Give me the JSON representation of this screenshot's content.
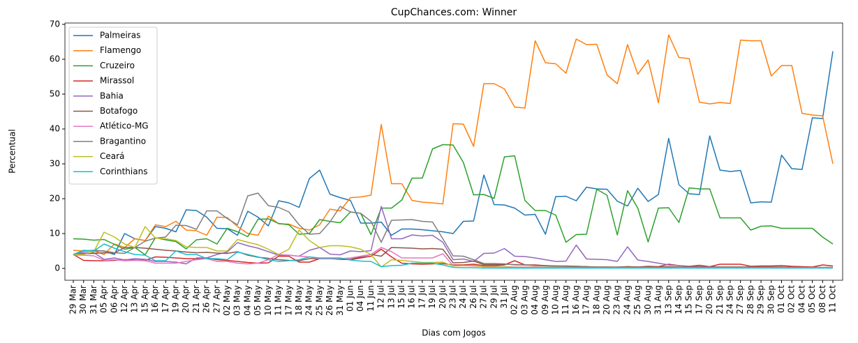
{
  "chart_data": {
    "type": "line",
    "title": "CupChances.com: Winner",
    "x_label": "Dias com Jogos",
    "y_label": "Percentual",
    "categories": [
      "29 Mar",
      "30 Mar",
      "31 Mar",
      "05 Apr",
      "06 Apr",
      "12 Apr",
      "13 Apr",
      "15 Apr",
      "16 Apr",
      "17 Apr",
      "19 Apr",
      "20 Apr",
      "21 Apr",
      "26 Apr",
      "27 Apr",
      "02 May",
      "03 May",
      "04 May",
      "05 May",
      "10 May",
      "11 May",
      "17 May",
      "18 May",
      "24 May",
      "25 May",
      "26 May",
      "31 May",
      "01 Jun",
      "04 Jun",
      "11 Jun",
      "12 Jul",
      "13 Jul",
      "15 Jul",
      "16 Jul",
      "17 Jul",
      "19 Jul",
      "20 Jul",
      "23 Jul",
      "24 Jul",
      "26 Jul",
      "27 Jul",
      "29 Jul",
      "31 Jul",
      "02 Aug",
      "03 Aug",
      "04 Aug",
      "09 Aug",
      "10 Aug",
      "11 Aug",
      "16 Aug",
      "17 Aug",
      "18 Aug",
      "20 Aug",
      "23 Aug",
      "24 Aug",
      "25 Aug",
      "30 Aug",
      "31 Aug",
      "13 Sep",
      "14 Sep",
      "15 Sep",
      "17 Sep",
      "20 Sep",
      "21 Sep",
      "24 Sep",
      "27 Sep",
      "28 Sep",
      "29 Sep",
      "30 Sep",
      "01 Oct",
      "02 Oct",
      "04 Oct",
      "05 Oct",
      "08 Oct",
      "11 Oct"
    ],
    "ylim": [
      -3.4,
      70.4
    ],
    "yticks": [
      0,
      10,
      20,
      30,
      40,
      50,
      60,
      70
    ],
    "legend": "upper left",
    "grid": false,
    "series": [
      {
        "name": "Palmeiras",
        "color": "#1f77b4",
        "values": [
          4,
          5,
          5,
          5,
          4,
          10,
          8.5,
          8,
          12,
          11.5,
          10.5,
          16.8,
          16.6,
          14.7,
          11.5,
          11.4,
          9.5,
          16.4,
          14.7,
          12.2,
          19.4,
          18.8,
          17.5,
          25.8,
          28.2,
          21.3,
          20.3,
          19.5,
          13,
          13,
          13.3,
          9.5,
          11.3,
          11.3,
          11.1,
          10.8,
          10.5,
          10,
          13.5,
          13.6,
          26.8,
          18.3,
          18.2,
          17.3,
          15.3,
          15.5,
          9.8,
          20.6,
          20.7,
          19.4,
          23.3,
          22.8,
          22.7,
          19.3,
          17.9,
          23,
          19.2,
          21.2,
          37.3,
          24,
          21.4,
          21.2,
          38,
          28.2,
          27.8,
          28.1,
          18.8,
          19.1,
          19,
          32.5,
          28.6,
          28.4,
          43.2,
          43,
          62.3
        ]
      },
      {
        "name": "Flamengo",
        "color": "#ff7f0e",
        "values": [
          5.2,
          5,
          5,
          4,
          7,
          6,
          8.5,
          8,
          12.5,
          12,
          13.5,
          11,
          10.8,
          9.5,
          14.7,
          14.6,
          12,
          10,
          9.5,
          15,
          12.8,
          12.7,
          11.5,
          11,
          12.5,
          17,
          16.5,
          20.3,
          20.5,
          21,
          41.3,
          24.3,
          24.3,
          19.5,
          19,
          18.8,
          18.5,
          41.5,
          41.4,
          35,
          53,
          53,
          51.5,
          46.3,
          46,
          65.3,
          59,
          58.7,
          56,
          65.8,
          64.2,
          64.3,
          55.5,
          53,
          64.2,
          55.7,
          59.8,
          47.5,
          67,
          60.5,
          60.2,
          47.7,
          47.2,
          47.6,
          47.3,
          65.5,
          65.3,
          65.3,
          55.2,
          58.2,
          58.2,
          44.5,
          44,
          43.8,
          30
        ]
      },
      {
        "name": "Cruzeiro",
        "color": "#2ca02c",
        "values": [
          8.5,
          8.4,
          8.1,
          8.3,
          6.9,
          5.5,
          6,
          3.9,
          8.8,
          8.2,
          7.7,
          5.6,
          8.2,
          8.5,
          7,
          11.5,
          10.5,
          9.1,
          14.1,
          14.2,
          12.9,
          12.5,
          9.8,
          10,
          14,
          13.5,
          13.1,
          16.2,
          15.8,
          9.7,
          17.3,
          17.3,
          19.6,
          25.9,
          25.9,
          34.3,
          35.5,
          35.4,
          30.4,
          21.1,
          21.2,
          20.1,
          32,
          32.3,
          19.5,
          16.6,
          16.6,
          15.3,
          7.5,
          9.7,
          9.8,
          22.7,
          21,
          9.6,
          22.3,
          17.3,
          7.6,
          17.3,
          17.4,
          13.2,
          23.1,
          22.8,
          22.8,
          14.5,
          14.5,
          14.5,
          11,
          12.1,
          12.2,
          11.5,
          11.5,
          11.5,
          11.5,
          9,
          7
        ]
      },
      {
        "name": "Mirassol",
        "color": "#d62728",
        "values": [
          4,
          2.3,
          2.2,
          2.2,
          2.3,
          2.5,
          2.4,
          2.3,
          3.3,
          3.2,
          3,
          2.8,
          2.8,
          3,
          2.5,
          2.3,
          2,
          1.7,
          1.5,
          1.6,
          3.5,
          3.5,
          1.8,
          1.8,
          2.8,
          2.8,
          2.6,
          2.5,
          3,
          3.5,
          5.5,
          3.3,
          1.5,
          1.3,
          1.2,
          1.3,
          1.4,
          1,
          1,
          1.2,
          0.8,
          0.8,
          1,
          2.2,
          1,
          1,
          0.8,
          0.7,
          0.6,
          0.6,
          0.5,
          0.4,
          0.4,
          0.3,
          0.5,
          0.4,
          0.6,
          0.5,
          1.2,
          0.8,
          0.6,
          0.9,
          0.5,
          1.2,
          1.2,
          1.2,
          0.6,
          0.7,
          0.7,
          0.8,
          0.6,
          0.5,
          0.4,
          1,
          0.7
        ]
      },
      {
        "name": "Bahia",
        "color": "#9467bd",
        "values": [
          4,
          4.5,
          4.5,
          2.6,
          3,
          2.4,
          2.8,
          2.6,
          2,
          2,
          1.8,
          1.3,
          3,
          3,
          4,
          4.7,
          7.4,
          6.5,
          5.8,
          4.8,
          3.8,
          3.8,
          3.5,
          5.2,
          6,
          4.1,
          3.9,
          5,
          4.8,
          5.1,
          17.8,
          8.5,
          8.5,
          9.6,
          9.3,
          9.5,
          7.5,
          2.5,
          2.7,
          2,
          4.3,
          4.4,
          5.7,
          3.5,
          3.4,
          3,
          2.5,
          2,
          2.1,
          6.7,
          2.7,
          2.6,
          2.5,
          2,
          6.2,
          2.4,
          2,
          1.5,
          1,
          0.8,
          0.6,
          0.5,
          0.5,
          0.4,
          0.4,
          0.4,
          0.4,
          0.4,
          0.3,
          0.3,
          0.3,
          0.3,
          0.2,
          0.2,
          0.2
        ]
      },
      {
        "name": "Botafogo",
        "color": "#8c564b",
        "values": [
          4,
          4.2,
          4.3,
          4.5,
          4.4,
          6,
          6,
          5.8,
          5.5,
          5.2,
          5,
          4.7,
          4.5,
          4.6,
          4.4,
          4.3,
          4.8,
          3.8,
          3.2,
          2.9,
          2.5,
          2.3,
          2.2,
          2.8,
          2.8,
          2.8,
          2.7,
          2.6,
          3.3,
          4,
          3.5,
          6,
          5.9,
          5.8,
          5.6,
          5.7,
          5.5,
          1.6,
          1.7,
          2.1,
          1.1,
          1.1,
          1.2,
          1.1,
          1,
          0.9,
          0.8,
          0.7,
          0.7,
          0.6,
          0.5,
          0.4,
          0.4,
          0.4,
          0.5,
          0.4,
          0.5,
          0.4,
          0.5,
          0.4,
          0.4,
          0.4,
          0.4,
          0.4,
          0.4,
          0.4,
          0.4,
          0.4,
          0.4,
          0.4,
          0.3,
          0.3,
          0.3,
          0.3,
          0.3
        ]
      },
      {
        "name": "Atlético-MG",
        "color": "#e377c2",
        "values": [
          3.8,
          3.8,
          3.6,
          2.3,
          2.5,
          2.2,
          2.3,
          2.2,
          1.5,
          1.5,
          1.5,
          2,
          2.5,
          2.8,
          2,
          2,
          1.5,
          1.3,
          1.5,
          2.5,
          4,
          3.8,
          3.5,
          3.3,
          2.8,
          2.8,
          2.8,
          3,
          3.5,
          4,
          6,
          4.8,
          3,
          3,
          3,
          3,
          4.2,
          0.8,
          0.8,
          0.7,
          0.5,
          0.5,
          0.5,
          0.4,
          0.4,
          0.4,
          0.3,
          0.3,
          0.3,
          0.3,
          0.2,
          0.2,
          0.2,
          0.2,
          0.2,
          0.2,
          0.2,
          0.2,
          0.2,
          0.2,
          0.2,
          0.2,
          0.2,
          0.2,
          0.2,
          0.2,
          0.2,
          0.2,
          0.2,
          0.2,
          0.2,
          0.2,
          0.2,
          0.2,
          0.2
        ]
      },
      {
        "name": "Bragantino",
        "color": "#7f7f7f",
        "values": [
          4,
          5,
          5.2,
          5,
          4.5,
          4.3,
          6,
          7.8,
          8.7,
          9,
          12.4,
          12.3,
          11.2,
          16.5,
          16.5,
          14.3,
          12.5,
          20.8,
          21.6,
          18,
          17.5,
          16.2,
          12.5,
          9.8,
          10,
          13.3,
          17.8,
          16.2,
          15.8,
          13.5,
          7.5,
          13.8,
          13.9,
          14,
          13.5,
          13.3,
          8.5,
          3.6,
          3.5,
          2.5,
          1.4,
          1.4,
          1.3,
          1,
          1,
          0.8,
          0.7,
          0.6,
          0.6,
          0.5,
          0.4,
          0.4,
          0.3,
          0.3,
          0.3,
          0.3,
          0.3,
          0.3,
          0.3,
          0.3,
          0.3,
          0.3,
          0.3,
          0.3,
          0.3,
          0.3,
          0.3,
          0.3,
          0.3,
          0.3,
          0.2,
          0.2,
          0.2,
          0.2,
          0.2
        ]
      },
      {
        "name": "Ceará",
        "color": "#bcbd22",
        "values": [
          4,
          4,
          4.8,
          10.4,
          9,
          7,
          6,
          12,
          8.7,
          8.5,
          8,
          6.2,
          6,
          6,
          5,
          5,
          8.3,
          7.5,
          6.8,
          5.5,
          4,
          5.5,
          11,
          8,
          6,
          6.5,
          6.5,
          6.2,
          5.5,
          4,
          0.4,
          2.5,
          2.3,
          2,
          1.7,
          1.7,
          1.8,
          0.7,
          0.8,
          0.9,
          0.4,
          0.4,
          0.4,
          0.3,
          0.3,
          0.3,
          0.3,
          0.3,
          0.2,
          0.2,
          0.2,
          0.2,
          0.2,
          0.2,
          0.2,
          0.2,
          0.2,
          0.2,
          0.2,
          0.2,
          0.2,
          0.2,
          0.2,
          0.2,
          0.2,
          0.2,
          0.2,
          0.2,
          0.2,
          0.2,
          0.2,
          0.2,
          0.2,
          0.2,
          0.2
        ]
      },
      {
        "name": "Corinthians",
        "color": "#17becf",
        "values": [
          4,
          5.2,
          5,
          7,
          5.8,
          4.8,
          4,
          3.8,
          2.2,
          2.2,
          5,
          4,
          4,
          2.8,
          2.8,
          2.5,
          4.7,
          4,
          3.3,
          2.5,
          2,
          2.2,
          2.5,
          3.3,
          3,
          3,
          3,
          2.4,
          2.1,
          2,
          0.5,
          0.8,
          0.9,
          1.5,
          1.5,
          1.5,
          1,
          0.3,
          0.2,
          0.2,
          0.1,
          0.1,
          0.1,
          0.1,
          0.1,
          0.1,
          0.1,
          0.1,
          0.1,
          0.1,
          0.1,
          0.1,
          0.1,
          0.1,
          0.1,
          0.1,
          0.1,
          0.1,
          0.1,
          0.1,
          0.1,
          0.1,
          0.1,
          0.1,
          0.1,
          0.1,
          0.1,
          0.1,
          0.1,
          0.1,
          0.1,
          0.1,
          0.1,
          0.1,
          0.1
        ]
      }
    ]
  }
}
